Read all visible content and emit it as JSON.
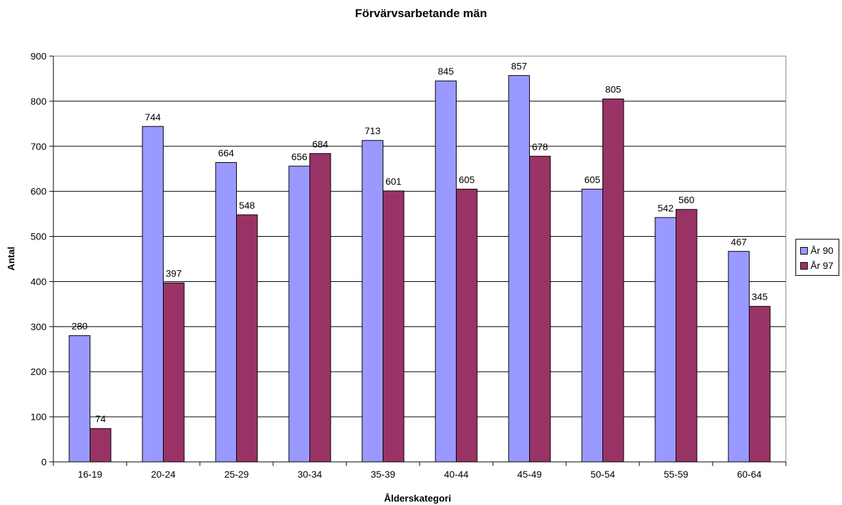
{
  "chart_data": {
    "type": "bar",
    "title": "Förvärvsarbetande män",
    "xlabel": "Ålderskategori",
    "ylabel": "Antal",
    "ylim": [
      0,
      900
    ],
    "ytick_step": 100,
    "grid": true,
    "legend_position": "right",
    "categories": [
      "16-19",
      "20-24",
      "25-29",
      "30-34",
      "35-39",
      "40-44",
      "45-49",
      "50-54",
      "55-59",
      "60-64"
    ],
    "series": [
      {
        "name": "År 90",
        "color": "#9999ff",
        "values": [
          280,
          744,
          664,
          656,
          713,
          845,
          857,
          605,
          542,
          467
        ]
      },
      {
        "name": "År 97",
        "color": "#993366",
        "values": [
          74,
          397,
          548,
          684,
          601,
          605,
          678,
          805,
          560,
          345
        ]
      }
    ]
  }
}
